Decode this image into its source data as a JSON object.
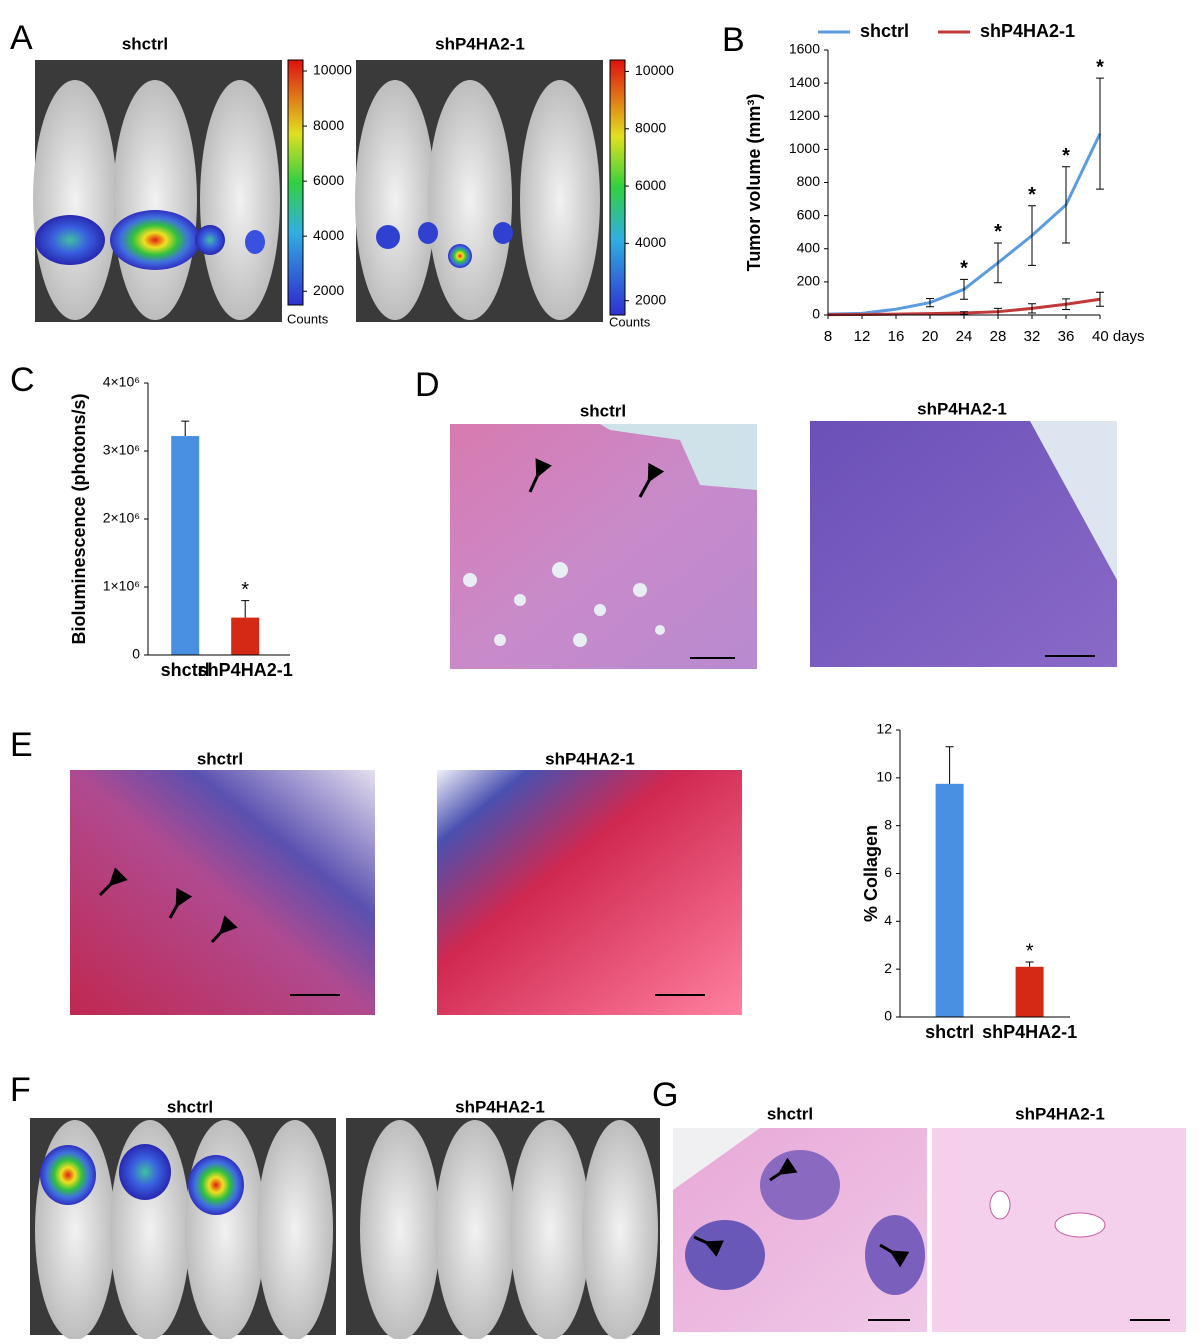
{
  "panels": {
    "letters": [
      "A",
      "B",
      "C",
      "D",
      "E",
      "F",
      "G"
    ],
    "A": {
      "labels": [
        "shctrl",
        "shP4HA2-1"
      ],
      "colorbars": [
        {
          "range": [
            1500,
            10400
          ],
          "ticks": [
            10000,
            8000,
            6000,
            4000,
            2000
          ],
          "unit": "Counts"
        },
        {
          "range": [
            1500,
            10400
          ],
          "ticks": [
            10000,
            8000,
            6000,
            4000,
            2000
          ],
          "unit": "Counts"
        }
      ]
    },
    "D": {
      "labels": [
        "shctrl",
        "shP4HA2-1"
      ]
    },
    "E": {
      "labels": [
        "shctrl",
        "shP4HA2-1"
      ]
    },
    "F": {
      "labels": [
        "shctrl",
        "shP4HA2-1"
      ]
    },
    "G": {
      "labels": [
        "shctrl",
        "shP4HA2-1"
      ]
    }
  },
  "chart_data": [
    {
      "type": "line",
      "y_label": "Tumor volume (mm³)",
      "legend": "top",
      "x": [
        8,
        12,
        16,
        20,
        24,
        28,
        32,
        36,
        40
      ],
      "xlim": [
        8,
        40
      ],
      "xticks": [
        8,
        12,
        16,
        20,
        24,
        28,
        32,
        36,
        {
          "value": 40,
          "label": "40 days"
        }
      ],
      "ylim": [
        0,
        1600
      ],
      "yticks": [
        0,
        200,
        400,
        600,
        800,
        1000,
        1200,
        1400,
        1600
      ],
      "series": [
        {
          "name": "shctrl",
          "color": "#5b9be0",
          "values": [
            5,
            10,
            35,
            75,
            155,
            315,
            480,
            665,
            1095
          ],
          "errors": [
            null,
            null,
            null,
            25,
            60,
            120,
            180,
            230,
            335
          ],
          "significance": [
            null,
            null,
            null,
            null,
            "*",
            "*",
            "*",
            "*",
            "*"
          ]
        },
        {
          "name": "shP4HA2-1",
          "color": "#c0393b",
          "values": [
            2,
            3,
            5,
            8,
            12,
            20,
            40,
            65,
            95
          ],
          "errors": [
            null,
            null,
            null,
            null,
            8,
            20,
            28,
            32,
            42
          ]
        }
      ]
    },
    {
      "type": "bar",
      "y_label": "Bioluminescence (photons/s)",
      "categories": [
        "shctrl",
        "shP4HA2-1"
      ],
      "values": [
        3220000,
        550000
      ],
      "errors": [
        220000,
        250000
      ],
      "colors": [
        "#4a90e2",
        "#d42a15"
      ],
      "significance": [
        null,
        "*"
      ],
      "ylim": [
        0,
        4000000
      ],
      "yticks": [
        0,
        {
          "value": 1000000,
          "label": "1×10⁶"
        },
        {
          "value": 2000000,
          "label": "2×10⁶"
        },
        {
          "value": 3000000,
          "label": "3×10⁶"
        },
        {
          "value": 4000000,
          "label": "4×10⁶"
        }
      ]
    },
    {
      "type": "bar",
      "y_label": "% Collagen",
      "categories": [
        "shctrl",
        "shP4HA2-1"
      ],
      "values": [
        9.75,
        2.1
      ],
      "errors": [
        1.55,
        0.2
      ],
      "colors": [
        "#4a90e2",
        "#d42a15"
      ],
      "significance": [
        null,
        "*"
      ],
      "ylim": [
        0,
        12
      ],
      "yticks": [
        0,
        2,
        4,
        6,
        8,
        10,
        12
      ]
    }
  ]
}
